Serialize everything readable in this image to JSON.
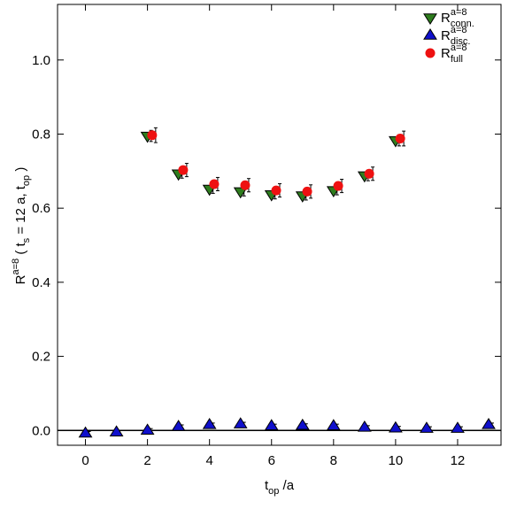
{
  "chart_data": {
    "type": "scatter",
    "ylabel": [
      {
        "text": "R"
      },
      {
        "text": "a=8",
        "style": "sup"
      },
      {
        "text": " ( t"
      },
      {
        "text": "s",
        "style": "sub"
      },
      {
        "text": " = 12 a, t"
      },
      {
        "text": "op",
        "style": "sub"
      },
      {
        "text": " )"
      }
    ],
    "xlabel": [
      {
        "text": "t"
      },
      {
        "text": "op",
        "style": "sub"
      },
      {
        "text": " /a"
      }
    ],
    "xlim": [
      -0.9,
      13.4
    ],
    "ylim": [
      -0.04,
      1.15
    ],
    "xticks": [
      0,
      2,
      4,
      6,
      8,
      10,
      12
    ],
    "yticks": [
      {
        "value": 0,
        "label": "0.0"
      },
      {
        "value": 0.2,
        "label": "0.2"
      },
      {
        "value": 0.4,
        "label": "0.4"
      },
      {
        "value": 0.6,
        "label": "0.6"
      },
      {
        "value": 0.8,
        "label": "0.8"
      },
      {
        "value": 1.0,
        "label": "1.0"
      }
    ],
    "hline": 0,
    "legend": "upper right",
    "series": [
      {
        "name": "R",
        "superscript": "a=8",
        "subscript": "conn.",
        "marker": "triangle-down",
        "color": "#2e7d1e",
        "x": [
          2,
          3,
          4,
          5,
          6,
          7,
          8,
          9,
          10
        ],
        "values": [
          0.795,
          0.693,
          0.652,
          0.645,
          0.637,
          0.634,
          0.648,
          0.688,
          0.783
        ],
        "errors": [
          0.015,
          0.012,
          0.012,
          0.012,
          0.012,
          0.012,
          0.012,
          0.014,
          0.015
        ]
      },
      {
        "name": "R",
        "superscript": "a=8",
        "subscript": "disc.",
        "marker": "triangle-up",
        "color": "#1010cc",
        "x": [
          0,
          1,
          2,
          3,
          4,
          5,
          6,
          7,
          8,
          9,
          10,
          11,
          12,
          13
        ],
        "values": [
          -0.008,
          -0.005,
          0.0,
          0.01,
          0.015,
          0.017,
          0.012,
          0.013,
          0.012,
          0.008,
          0.006,
          0.005,
          0.005,
          0.015
        ],
        "errors": [
          0.005,
          0.005,
          0.005,
          0.005,
          0.005,
          0.005,
          0.005,
          0.005,
          0.005,
          0.005,
          0.005,
          0.005,
          0.005,
          0.005
        ]
      },
      {
        "name": "R",
        "superscript": "a=8",
        "subscript": "full",
        "marker": "circle",
        "color": "#ee1111",
        "x": [
          2.15,
          3.15,
          4.15,
          5.15,
          6.15,
          7.15,
          8.15,
          9.15,
          10.15
        ],
        "values": [
          0.797,
          0.703,
          0.665,
          0.662,
          0.648,
          0.645,
          0.66,
          0.693,
          0.788
        ],
        "errors": [
          0.02,
          0.018,
          0.018,
          0.018,
          0.018,
          0.018,
          0.018,
          0.018,
          0.02
        ]
      }
    ]
  }
}
